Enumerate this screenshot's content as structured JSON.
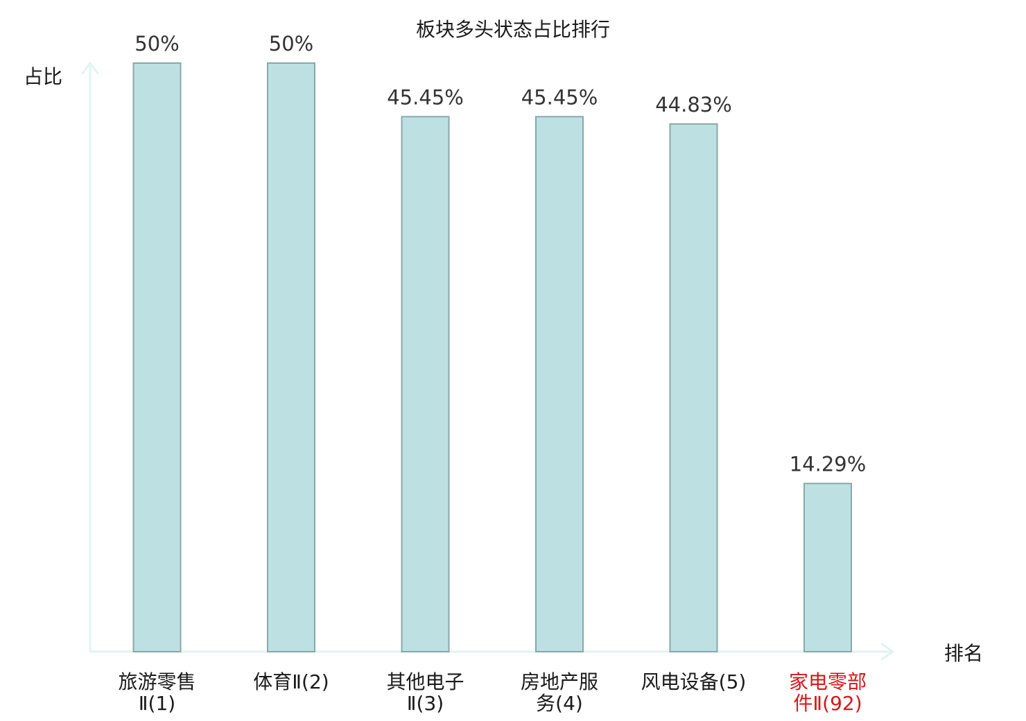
{
  "chart_data": {
    "type": "bar",
    "title": "板块多头状态占比排行",
    "ylabel": "占比",
    "xlabel": "排名",
    "ylim": [
      0,
      50
    ],
    "grid": false,
    "categories": [
      {
        "lines": [
          "旅游零售",
          "Ⅱ(1)"
        ],
        "highlight": false
      },
      {
        "lines": [
          "体育Ⅱ(2)"
        ],
        "highlight": false
      },
      {
        "lines": [
          "其他电子",
          "Ⅱ(3)"
        ],
        "highlight": false
      },
      {
        "lines": [
          "房地产服",
          "务(4)"
        ],
        "highlight": false
      },
      {
        "lines": [
          "风电设备(5)"
        ],
        "highlight": false
      },
      {
        "lines": [
          "家电零部",
          "件Ⅱ(92)"
        ],
        "highlight": true
      }
    ],
    "values": [
      50,
      50,
      45.45,
      45.45,
      44.83,
      14.29
    ],
    "value_labels": [
      "50%",
      "50%",
      "45.45%",
      "45.45%",
      "44.83%",
      "14.29%"
    ]
  },
  "colors": {
    "bar_fill": "#bde1e3",
    "bar_stroke": "#8aa7aa",
    "axis": "#e2f3f0",
    "highlight_label": "#d9141a"
  }
}
